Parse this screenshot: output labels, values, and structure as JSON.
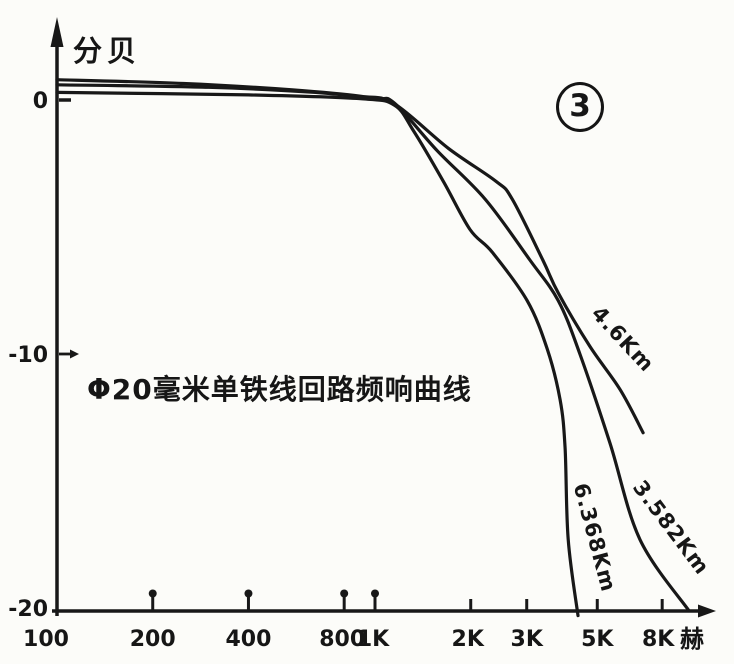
{
  "chart_data": {
    "type": "line",
    "x_scale": "log",
    "title": "Φ20毫米单铁线回路频响曲线",
    "ylabel": "分贝",
    "x_unit": "赫",
    "figure_number": "3",
    "xlim": [
      100,
      10500
    ],
    "ylim": [
      -20.5,
      1.5
    ],
    "grid": false,
    "legend_position": "labels-on-curves",
    "x_ticks": [
      {
        "v": 100,
        "label": "100",
        "style": "none",
        "dx": -11
      },
      {
        "v": 200,
        "label": "200",
        "style": "pin",
        "dx": 0
      },
      {
        "v": 400,
        "label": "400",
        "style": "pin",
        "dx": 0
      },
      {
        "v": 800,
        "label": "800",
        "style": "pin",
        "dx": -2
      },
      {
        "v": 1000,
        "label": "1K",
        "style": "pin",
        "dx": -2
      },
      {
        "v": 2000,
        "label": "2K",
        "style": "tick",
        "dx": -3
      },
      {
        "v": 3000,
        "label": "3K",
        "style": "tick",
        "dx": 0
      },
      {
        "v": 5000,
        "label": "5K",
        "style": "tick",
        "dx": 0
      },
      {
        "v": 8000,
        "label": "8K",
        "style": "tick",
        "dx": -4
      }
    ],
    "y_ticks": [
      {
        "v": 0,
        "label": "0",
        "marker": "dash"
      },
      {
        "v": -10,
        "label": "-10",
        "marker": "arrow"
      },
      {
        "v": -20,
        "label": "-20",
        "marker": "none"
      }
    ],
    "series": [
      {
        "name": "4.6Km",
        "points": [
          [
            100,
            0.8
          ],
          [
            250,
            0.65
          ],
          [
            550,
            0.4
          ],
          [
            900,
            0.15
          ],
          [
            1150,
            -0.15
          ],
          [
            1700,
            -1.9
          ],
          [
            2400,
            -3.2
          ],
          [
            2700,
            -3.9
          ],
          [
            3370,
            -6.3
          ],
          [
            3770,
            -7.6
          ],
          [
            4740,
            -9.7
          ],
          [
            5900,
            -11.4
          ],
          [
            6970,
            -13.1
          ]
        ],
        "label": {
          "f": 5800,
          "db": -9.6,
          "rotate": 47
        }
      },
      {
        "name": "3.582Km",
        "points": [
          [
            100,
            0.6
          ],
          [
            300,
            0.5
          ],
          [
            650,
            0.3
          ],
          [
            1000,
            0.05
          ],
          [
            1150,
            -0.12
          ],
          [
            1570,
            -2.0
          ],
          [
            2220,
            -3.9
          ],
          [
            3070,
            -6.3
          ],
          [
            3770,
            -7.9
          ],
          [
            4410,
            -10.0
          ],
          [
            5480,
            -13.5
          ],
          [
            6810,
            -17.3
          ],
          [
            9700,
            -20.1
          ]
        ],
        "label": {
          "f": 8200,
          "db": -17.0,
          "rotate": 53
        }
      },
      {
        "name": "6.368Km",
        "points": [
          [
            100,
            0.3
          ],
          [
            400,
            0.2
          ],
          [
            900,
            0.05
          ],
          [
            1150,
            -0.2
          ],
          [
            1320,
            -1.2
          ],
          [
            1640,
            -3.2
          ],
          [
            1990,
            -5.1
          ],
          [
            2340,
            -6.0
          ],
          [
            3010,
            -7.9
          ],
          [
            3480,
            -9.8
          ],
          [
            3820,
            -11.8
          ],
          [
            3960,
            -13.7
          ],
          [
            4050,
            -17.3
          ],
          [
            4350,
            -20.3
          ]
        ],
        "label": {
          "f": 4675,
          "db": -17.3,
          "rotate": 75
        }
      }
    ]
  }
}
